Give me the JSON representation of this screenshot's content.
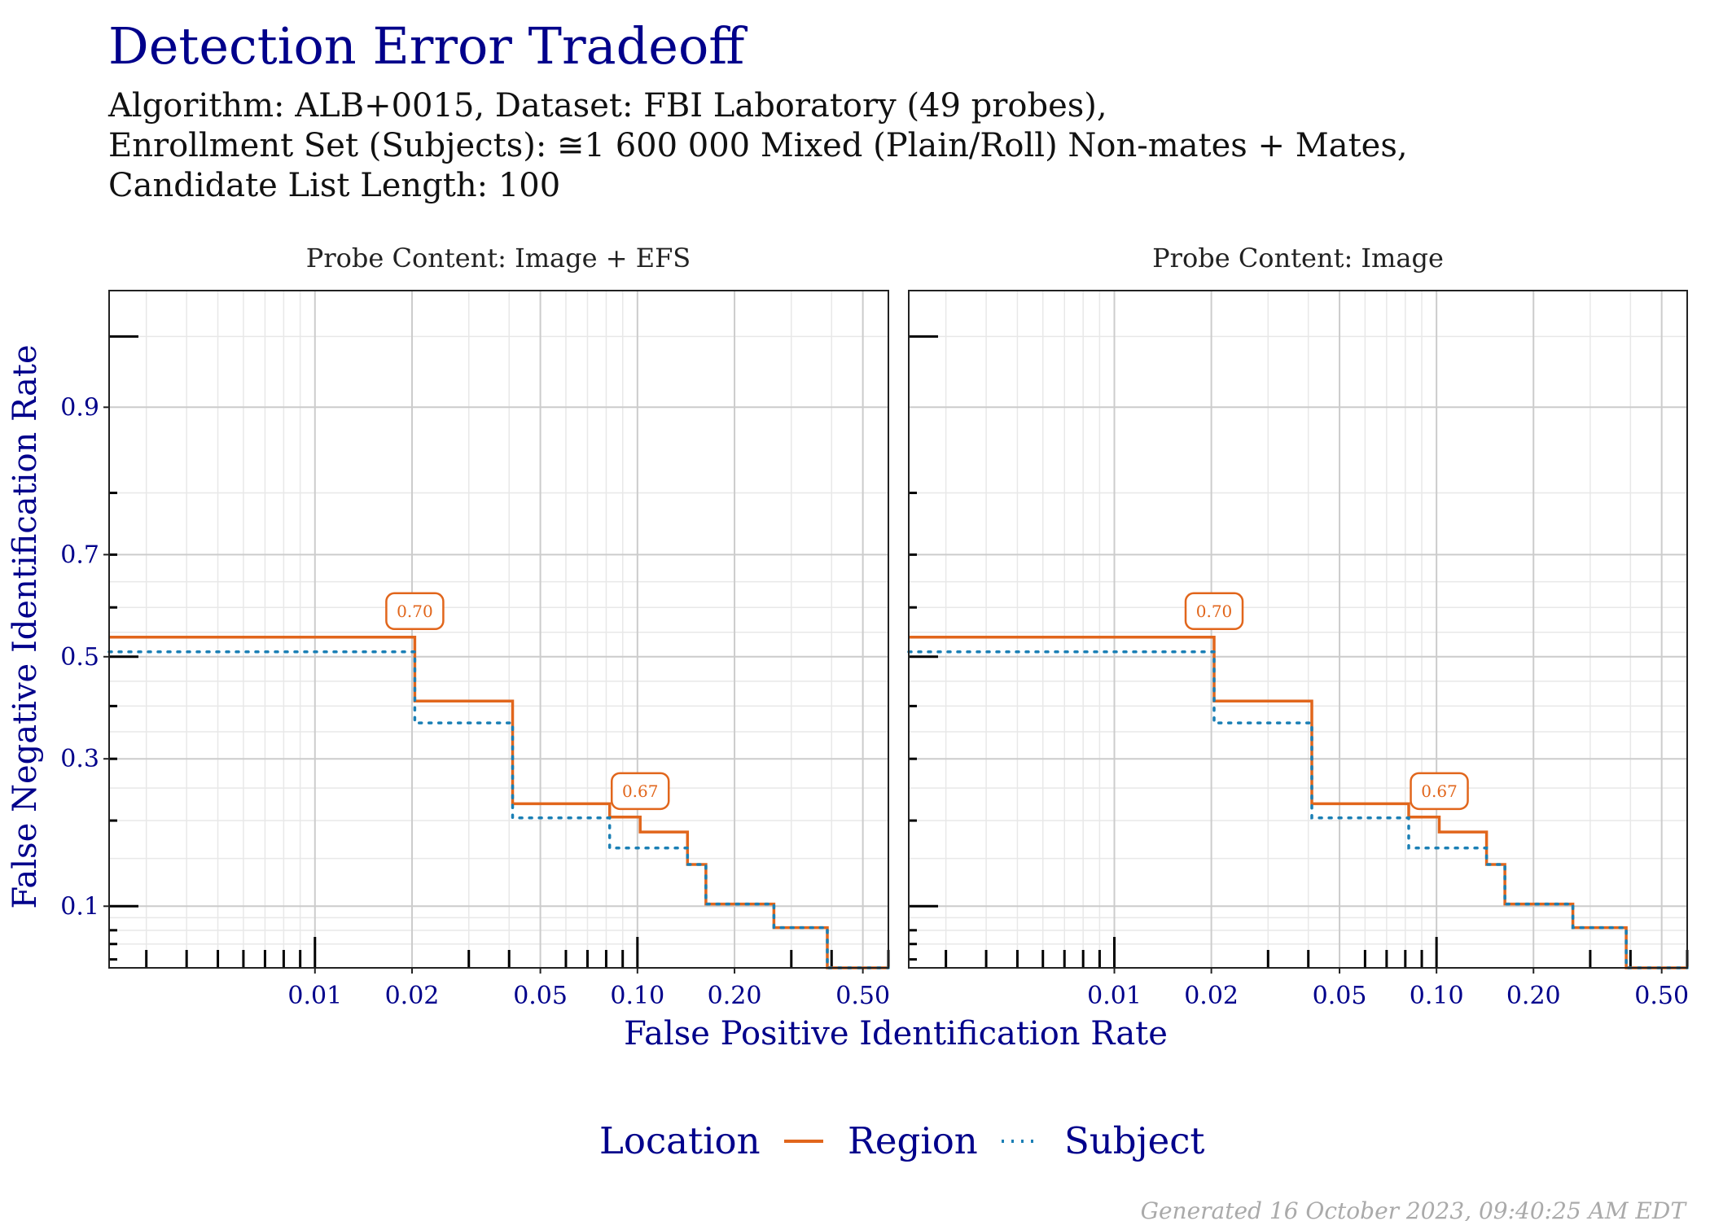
{
  "title": "Detection Error Tradeoff",
  "subtitle_lines": [
    "Algorithm: ALB+0015, Dataset: FBI Laboratory (49 probes),",
    "Enrollment Set (Subjects): ≅1 600 000 Mixed (Plain/Roll) Non-mates + Mates,",
    "Candidate List Length: 100"
  ],
  "footer": "Generated 16 October 2023, 09:40:25 AM EDT",
  "colors": {
    "title": "#00008b",
    "region": "#e1661c",
    "subject": "#1a7fb5",
    "grid_major": "#cccccc",
    "grid_minor": "#e8e8e8"
  },
  "chart_data": {
    "type": "line",
    "x_scale": "log",
    "y_scale": "probit",
    "xlabel": "False Positive Identification Rate",
    "ylabel": "False Negative Identification Rate",
    "xlim": [
      0.0023,
      0.6
    ],
    "ylim": [
      0.055,
      0.97
    ],
    "x_ticks": [
      {
        "value": 0.01,
        "label": "0.01"
      },
      {
        "value": 0.02,
        "label": "0.02"
      },
      {
        "value": 0.05,
        "label": "0.05"
      },
      {
        "value": 0.1,
        "label": "0.10"
      },
      {
        "value": 0.2,
        "label": "0.20"
      },
      {
        "value": 0.5,
        "label": "0.50"
      }
    ],
    "y_ticks": [
      {
        "value": 0.1,
        "label": "0.1"
      },
      {
        "value": 0.3,
        "label": "0.3"
      },
      {
        "value": 0.5,
        "label": "0.5"
      },
      {
        "value": 0.7,
        "label": "0.7"
      },
      {
        "value": 0.9,
        "label": "0.9"
      }
    ],
    "legend": {
      "title": "Location",
      "position": "bottom",
      "entries": [
        {
          "name": "Region",
          "style": "solid",
          "color": "#e1661c"
        },
        {
          "name": "Subject",
          "style": "dotted",
          "color": "#1a7fb5"
        }
      ]
    },
    "panels": [
      {
        "title": "Probe Content: Image + EFS",
        "series": [
          {
            "name": "Region",
            "points": [
              [
                0.0023,
                0.54
              ],
              [
                0.0204,
                0.54
              ],
              [
                0.0204,
                0.41
              ],
              [
                0.041,
                0.41
              ],
              [
                0.041,
                0.225
              ],
              [
                0.082,
                0.225
              ],
              [
                0.082,
                0.205
              ],
              [
                0.102,
                0.205
              ],
              [
                0.102,
                0.184
              ],
              [
                0.143,
                0.184
              ],
              [
                0.143,
                0.143
              ],
              [
                0.163,
                0.143
              ],
              [
                0.163,
                0.102
              ],
              [
                0.265,
                0.102
              ],
              [
                0.265,
                0.082
              ],
              [
                0.388,
                0.082
              ],
              [
                0.388,
                0.055
              ],
              [
                0.6,
                0.055
              ]
            ]
          },
          {
            "name": "Subject",
            "points": [
              [
                0.0023,
                0.51
              ],
              [
                0.0204,
                0.51
              ],
              [
                0.0204,
                0.367
              ],
              [
                0.041,
                0.367
              ],
              [
                0.041,
                0.204
              ],
              [
                0.082,
                0.204
              ],
              [
                0.082,
                0.163
              ],
              [
                0.143,
                0.163
              ],
              [
                0.143,
                0.143
              ],
              [
                0.163,
                0.143
              ],
              [
                0.163,
                0.102
              ],
              [
                0.265,
                0.102
              ],
              [
                0.265,
                0.082
              ],
              [
                0.388,
                0.082
              ],
              [
                0.388,
                0.055
              ],
              [
                0.6,
                0.055
              ]
            ]
          }
        ],
        "annotations": [
          {
            "x": 0.0204,
            "y": 0.54,
            "label": "0.70"
          },
          {
            "x": 0.102,
            "y": 0.205,
            "label": "0.67"
          }
        ]
      },
      {
        "title": "Probe Content: Image",
        "series": [
          {
            "name": "Region",
            "points": [
              [
                0.0023,
                0.54
              ],
              [
                0.0204,
                0.54
              ],
              [
                0.0204,
                0.41
              ],
              [
                0.041,
                0.41
              ],
              [
                0.041,
                0.225
              ],
              [
                0.082,
                0.225
              ],
              [
                0.082,
                0.205
              ],
              [
                0.102,
                0.205
              ],
              [
                0.102,
                0.184
              ],
              [
                0.143,
                0.184
              ],
              [
                0.143,
                0.143
              ],
              [
                0.163,
                0.143
              ],
              [
                0.163,
                0.102
              ],
              [
                0.265,
                0.102
              ],
              [
                0.265,
                0.082
              ],
              [
                0.388,
                0.082
              ],
              [
                0.388,
                0.055
              ],
              [
                0.6,
                0.055
              ]
            ]
          },
          {
            "name": "Subject",
            "points": [
              [
                0.0023,
                0.51
              ],
              [
                0.0204,
                0.51
              ],
              [
                0.0204,
                0.367
              ],
              [
                0.041,
                0.367
              ],
              [
                0.041,
                0.204
              ],
              [
                0.082,
                0.204
              ],
              [
                0.082,
                0.163
              ],
              [
                0.143,
                0.163
              ],
              [
                0.143,
                0.143
              ],
              [
                0.163,
                0.143
              ],
              [
                0.163,
                0.102
              ],
              [
                0.265,
                0.102
              ],
              [
                0.265,
                0.082
              ],
              [
                0.388,
                0.082
              ],
              [
                0.388,
                0.055
              ],
              [
                0.6,
                0.055
              ]
            ]
          }
        ],
        "annotations": [
          {
            "x": 0.0204,
            "y": 0.54,
            "label": "0.70"
          },
          {
            "x": 0.102,
            "y": 0.205,
            "label": "0.67"
          }
        ]
      }
    ]
  }
}
